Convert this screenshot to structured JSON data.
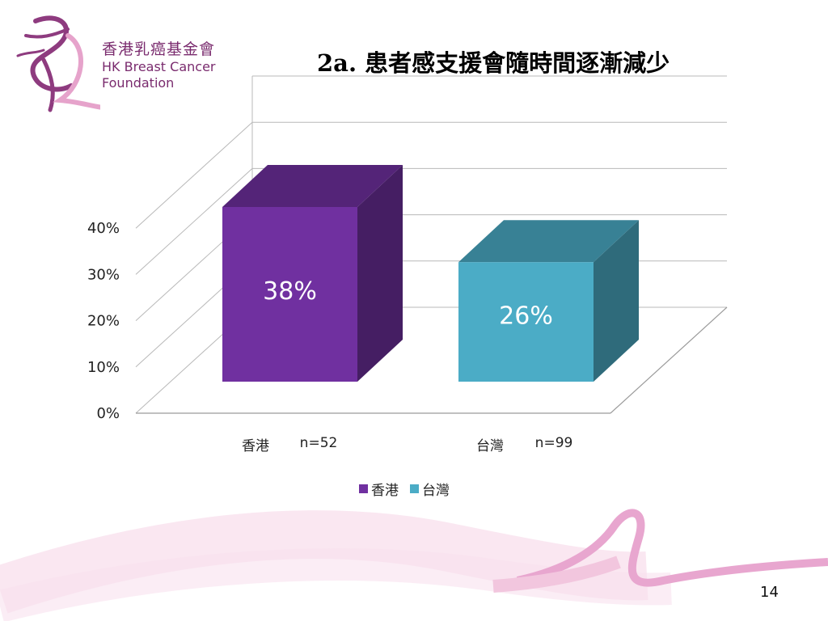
{
  "logo": {
    "name_zh": "香港乳癌基金會",
    "name_en_line1": "HK Breast Cancer",
    "name_en_line2": "Foundation"
  },
  "slide": {
    "title": "2a. 患者感支援會隨時間逐漸減少",
    "page_number": "14"
  },
  "colors": {
    "hong_kong": "#7030a0",
    "taiwan": "#4bacc6",
    "brand": "#7a2b6e",
    "ribbon": "#e8a6cf"
  },
  "chart_data": {
    "type": "bar",
    "style": "3d-column",
    "categories": [
      "香港",
      "台灣"
    ],
    "sample_sizes": [
      "n=52",
      "n=99"
    ],
    "values": [
      38,
      26
    ],
    "data_labels": [
      "38%",
      "26%"
    ],
    "yticks": [
      "0%",
      "10%",
      "20%",
      "30%",
      "40%"
    ],
    "ylim": [
      0,
      40
    ],
    "grid": true,
    "legend": [
      "香港",
      "台灣"
    ],
    "legend_position": "bottom"
  }
}
